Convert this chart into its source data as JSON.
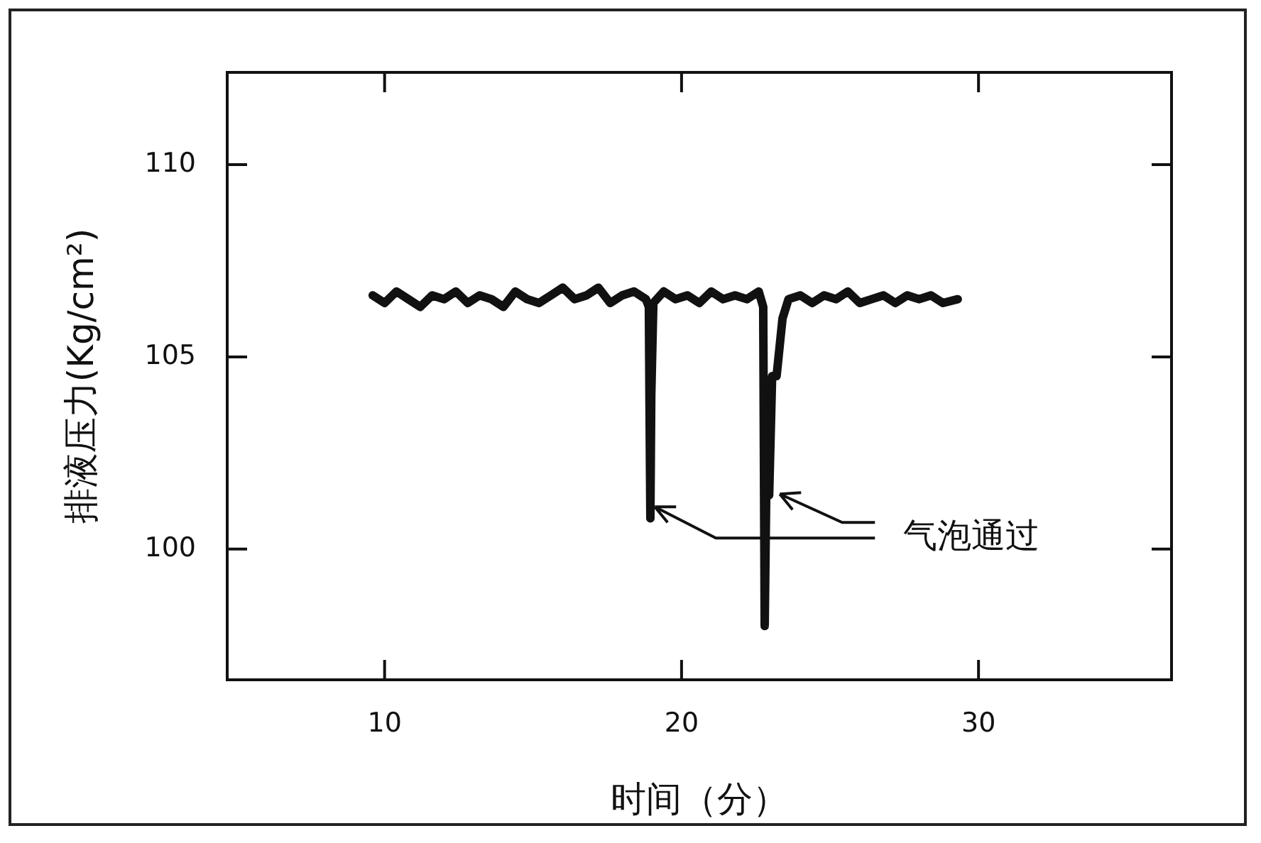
{
  "chart_data": {
    "type": "line",
    "xlabel": "时间（分）",
    "ylabel": "排液压力(Kg/cm²)",
    "x": [
      9.6,
      10.0,
      10.4,
      10.8,
      11.2,
      11.6,
      12.0,
      12.4,
      12.8,
      13.2,
      13.6,
      14.0,
      14.4,
      14.8,
      15.2,
      15.6,
      16.0,
      16.4,
      16.8,
      17.2,
      17.6,
      18.0,
      18.4,
      18.8,
      18.9,
      18.92,
      18.95,
      18.98,
      19.05,
      19.4,
      19.8,
      20.2,
      20.6,
      21.0,
      21.4,
      21.8,
      22.2,
      22.6,
      22.75,
      22.8,
      22.85,
      22.95,
      23.05,
      23.2,
      23.4,
      23.6,
      24.0,
      24.4,
      24.8,
      25.2,
      25.6,
      26.0,
      26.4,
      26.8,
      27.2,
      27.6,
      28.0,
      28.4,
      28.8,
      29.3
    ],
    "series": [
      {
        "color": "#111111",
        "values": [
          106.6,
          106.4,
          106.7,
          106.5,
          106.3,
          106.6,
          106.5,
          106.7,
          106.4,
          106.6,
          106.5,
          106.3,
          106.7,
          106.5,
          106.4,
          106.6,
          106.8,
          106.5,
          106.6,
          106.8,
          106.4,
          106.6,
          106.7,
          106.5,
          106.3,
          103.9,
          100.8,
          104.0,
          106.4,
          106.7,
          106.5,
          106.6,
          106.4,
          106.7,
          106.5,
          106.6,
          106.5,
          106.7,
          106.3,
          98.0,
          101.4,
          101.4,
          104.5,
          104.5,
          106.0,
          106.5,
          106.6,
          106.4,
          106.6,
          106.5,
          106.7,
          106.4,
          106.5,
          106.6,
          106.4,
          106.6,
          106.5,
          106.6,
          106.4,
          106.5
        ]
      }
    ],
    "xlim": [
      4.7,
      36.5
    ],
    "ylim": [
      96.6,
      112.4
    ],
    "xticks": [
      10,
      20,
      30
    ],
    "yticks": [
      100,
      105,
      110
    ],
    "grid": false,
    "legend": false,
    "marker": "none",
    "line_style": "solid",
    "annotations": [
      {
        "text": "气泡通过",
        "x": 19.1,
        "y": 101.1
      }
    ]
  }
}
